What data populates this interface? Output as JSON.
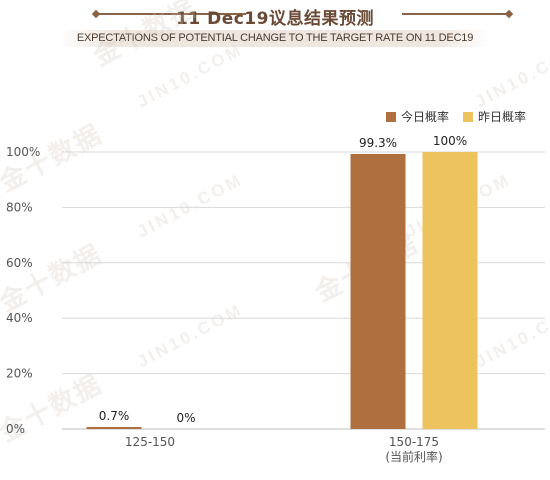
{
  "header": {
    "title": "11 Dec19议息结果预测",
    "subtitle": "EXPECTATIONS OF POTENTIAL CHANGE TO THE TARGET RATE ON 11 DEC19"
  },
  "watermark": {
    "cn": "金十数据",
    "en": "JIN10.COM"
  },
  "colors": {
    "today": "#b06f3f",
    "yesterday": "#ecc35d",
    "title": "#6b4a35",
    "grid": "#d9d9d9",
    "axis": "#555555"
  },
  "chart_data": {
    "type": "bar",
    "title": "11 Dec19议息结果预测",
    "subtitle": "EXPECTATIONS OF POTENTIAL CHANGE TO THE TARGET RATE ON 11 DEC19",
    "categories": [
      {
        "line1": "125-150",
        "line2": ""
      },
      {
        "line1": "150-175",
        "line2": "(当前利率)"
      }
    ],
    "series": [
      {
        "name": "今日概率",
        "color": "#b06f3f",
        "values": [
          0.7,
          99.3
        ],
        "labels": [
          "0.7%",
          "99.3%"
        ]
      },
      {
        "name": "昨日概率",
        "color": "#ecc35d",
        "values": [
          0,
          100
        ],
        "labels": [
          "0%",
          "100%"
        ]
      }
    ],
    "ylim": [
      0,
      100
    ],
    "yticks": [
      0,
      20,
      40,
      60,
      80,
      100
    ],
    "ytick_labels": [
      "0%",
      "20%",
      "40%",
      "60%",
      "80%",
      "100%"
    ],
    "xlabel": "",
    "ylabel": "",
    "grid": true,
    "legend_position": "top-right"
  }
}
